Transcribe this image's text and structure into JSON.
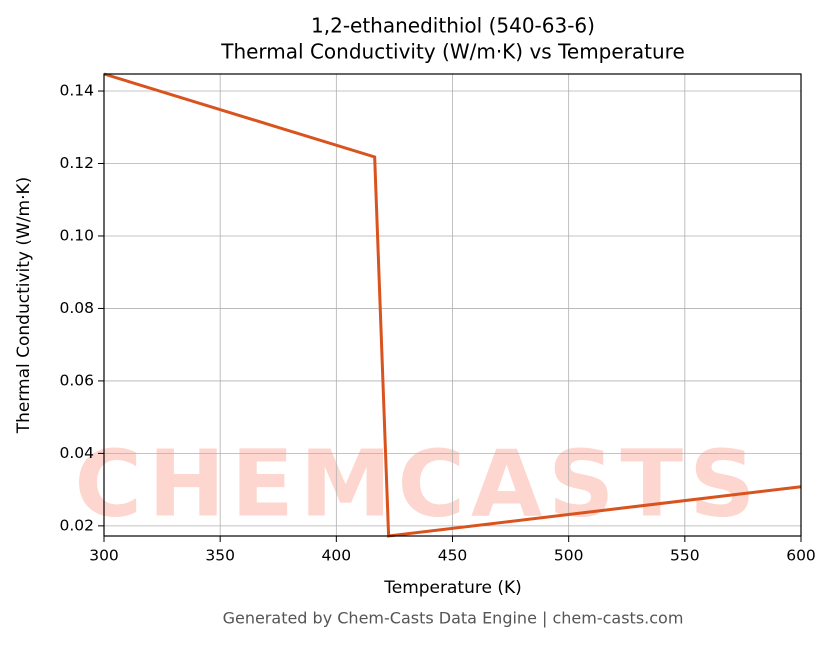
{
  "chart_data": {
    "type": "line",
    "title": "1,2-ethanedithiol (540-63-6)",
    "subtitle": "Thermal Conductivity (W/m·K) vs Temperature",
    "xlabel": "Temperature (K)",
    "ylabel": "Thermal Conductivity (W/m·K)",
    "watermark": "CHEMCASTS",
    "footer": "Generated by Chem-Casts Data Engine | chem-casts.com",
    "x": [
      300,
      416.5,
      422.5,
      600
    ],
    "series": [
      {
        "name": "Thermal Conductivity",
        "color": "#d9531e",
        "values": [
          0.1447,
          0.1218,
          0.0172,
          0.0308
        ]
      }
    ],
    "xlim": [
      300,
      600
    ],
    "xticks": [
      300,
      350,
      400,
      450,
      500,
      550,
      600
    ],
    "ylim": [
      0.0172,
      0.1447
    ],
    "yticks": [
      0.02,
      0.04,
      0.06,
      0.08,
      {
        "value": 0.1,
        "label": "0.10"
      },
      0.12,
      0.14
    ],
    "grid": true
  }
}
